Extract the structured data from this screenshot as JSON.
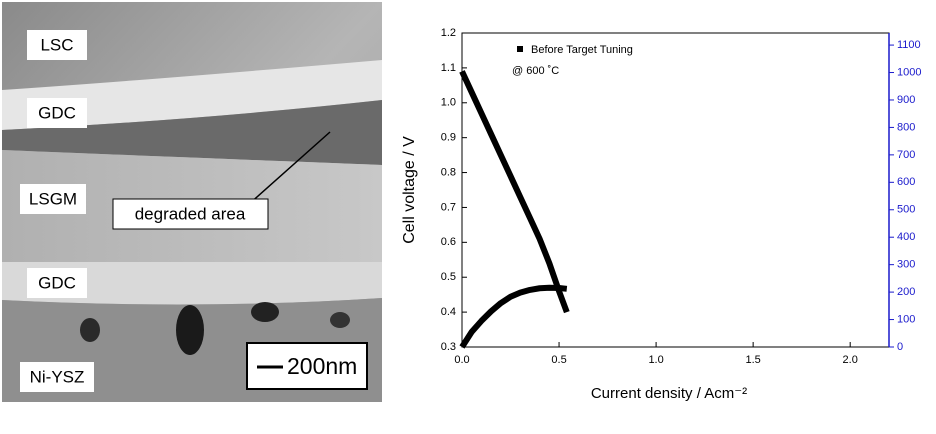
{
  "micrograph": {
    "layers": [
      "LSC",
      "GDC",
      "LSGM",
      "GDC",
      "Ni-YSZ"
    ],
    "annotation": "degraded area",
    "scale_bar": "200nm"
  },
  "chart_data": {
    "type": "line",
    "xlabel": "Current density / Acm⁻²",
    "ylabel": "Cell voltage / V",
    "annotation": "@ 600 ˚C",
    "legend": "top-left",
    "x": [
      0,
      0.05,
      0.1,
      0.15,
      0.2,
      0.25,
      0.3,
      0.35,
      0.4,
      0.45,
      0.5,
      0.54
    ],
    "series": [
      {
        "name": "Before Target Tuning",
        "color": "#000000",
        "values": [
          1.09,
          1.03,
          0.97,
          0.91,
          0.85,
          0.79,
          0.73,
          0.67,
          0.61,
          0.54,
          0.46,
          0.4
        ]
      },
      {
        "color": "#000000",
        "axis": "y2",
        "values": [
          0,
          55,
          95,
          130,
          160,
          183,
          198,
          208,
          214,
          216,
          215,
          212
        ]
      }
    ],
    "xlim": [
      0,
      2.2
    ],
    "xticks": [
      {
        "value": 0,
        "label": "0.0"
      },
      0.5,
      {
        "value": 1,
        "label": "1.0"
      },
      1.5,
      {
        "value": 2,
        "label": "2.0"
      }
    ],
    "ylim": [
      0.3,
      1.2
    ],
    "yticks": [
      0.3,
      0.4,
      0.5,
      0.6,
      0.7,
      0.8,
      0.9,
      {
        "value": 1,
        "label": "1.0"
      },
      1.1,
      1.2
    ],
    "y2lim": [
      0,
      1144
    ],
    "y2ticks": [
      0,
      100,
      200,
      300,
      400,
      500,
      600,
      700,
      800,
      900,
      1000,
      1100
    ],
    "y2color": "#1a1acc"
  }
}
